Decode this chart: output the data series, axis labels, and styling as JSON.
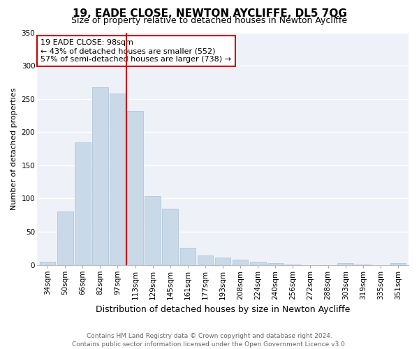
{
  "title": "19, EADE CLOSE, NEWTON AYCLIFFE, DL5 7QG",
  "subtitle": "Size of property relative to detached houses in Newton Aycliffe",
  "xlabel": "Distribution of detached houses by size in Newton Aycliffe",
  "ylabel": "Number of detached properties",
  "categories": [
    "34sqm",
    "50sqm",
    "66sqm",
    "82sqm",
    "97sqm",
    "113sqm",
    "129sqm",
    "145sqm",
    "161sqm",
    "177sqm",
    "193sqm",
    "208sqm",
    "224sqm",
    "240sqm",
    "256sqm",
    "272sqm",
    "288sqm",
    "303sqm",
    "319sqm",
    "335sqm",
    "351sqm"
  ],
  "values": [
    5,
    80,
    185,
    268,
    258,
    232,
    104,
    85,
    26,
    14,
    11,
    8,
    5,
    3,
    1,
    0,
    0,
    3,
    1,
    0,
    3
  ],
  "bar_color": "#c9d9e8",
  "bar_edge_color": "#a8c0d4",
  "vline_color": "#cc0000",
  "vline_x_index": 4,
  "annotation_line1": "19 EADE CLOSE: 98sqm",
  "annotation_line2": "← 43% of detached houses are smaller (552)",
  "annotation_line3": "57% of semi-detached houses are larger (738) →",
  "annotation_box_color": "#cc0000",
  "ylim": [
    0,
    350
  ],
  "yticks": [
    0,
    50,
    100,
    150,
    200,
    250,
    300,
    350
  ],
  "footer_line1": "Contains HM Land Registry data © Crown copyright and database right 2024.",
  "footer_line2": "Contains public sector information licensed under the Open Government Licence v3.0.",
  "bg_color": "#eef2f8",
  "grid_color": "#ffffff",
  "title_fontsize": 11,
  "subtitle_fontsize": 9,
  "xlabel_fontsize": 9,
  "ylabel_fontsize": 8,
  "tick_fontsize": 7.5,
  "footer_fontsize": 6.5,
  "ann_fontsize": 8
}
